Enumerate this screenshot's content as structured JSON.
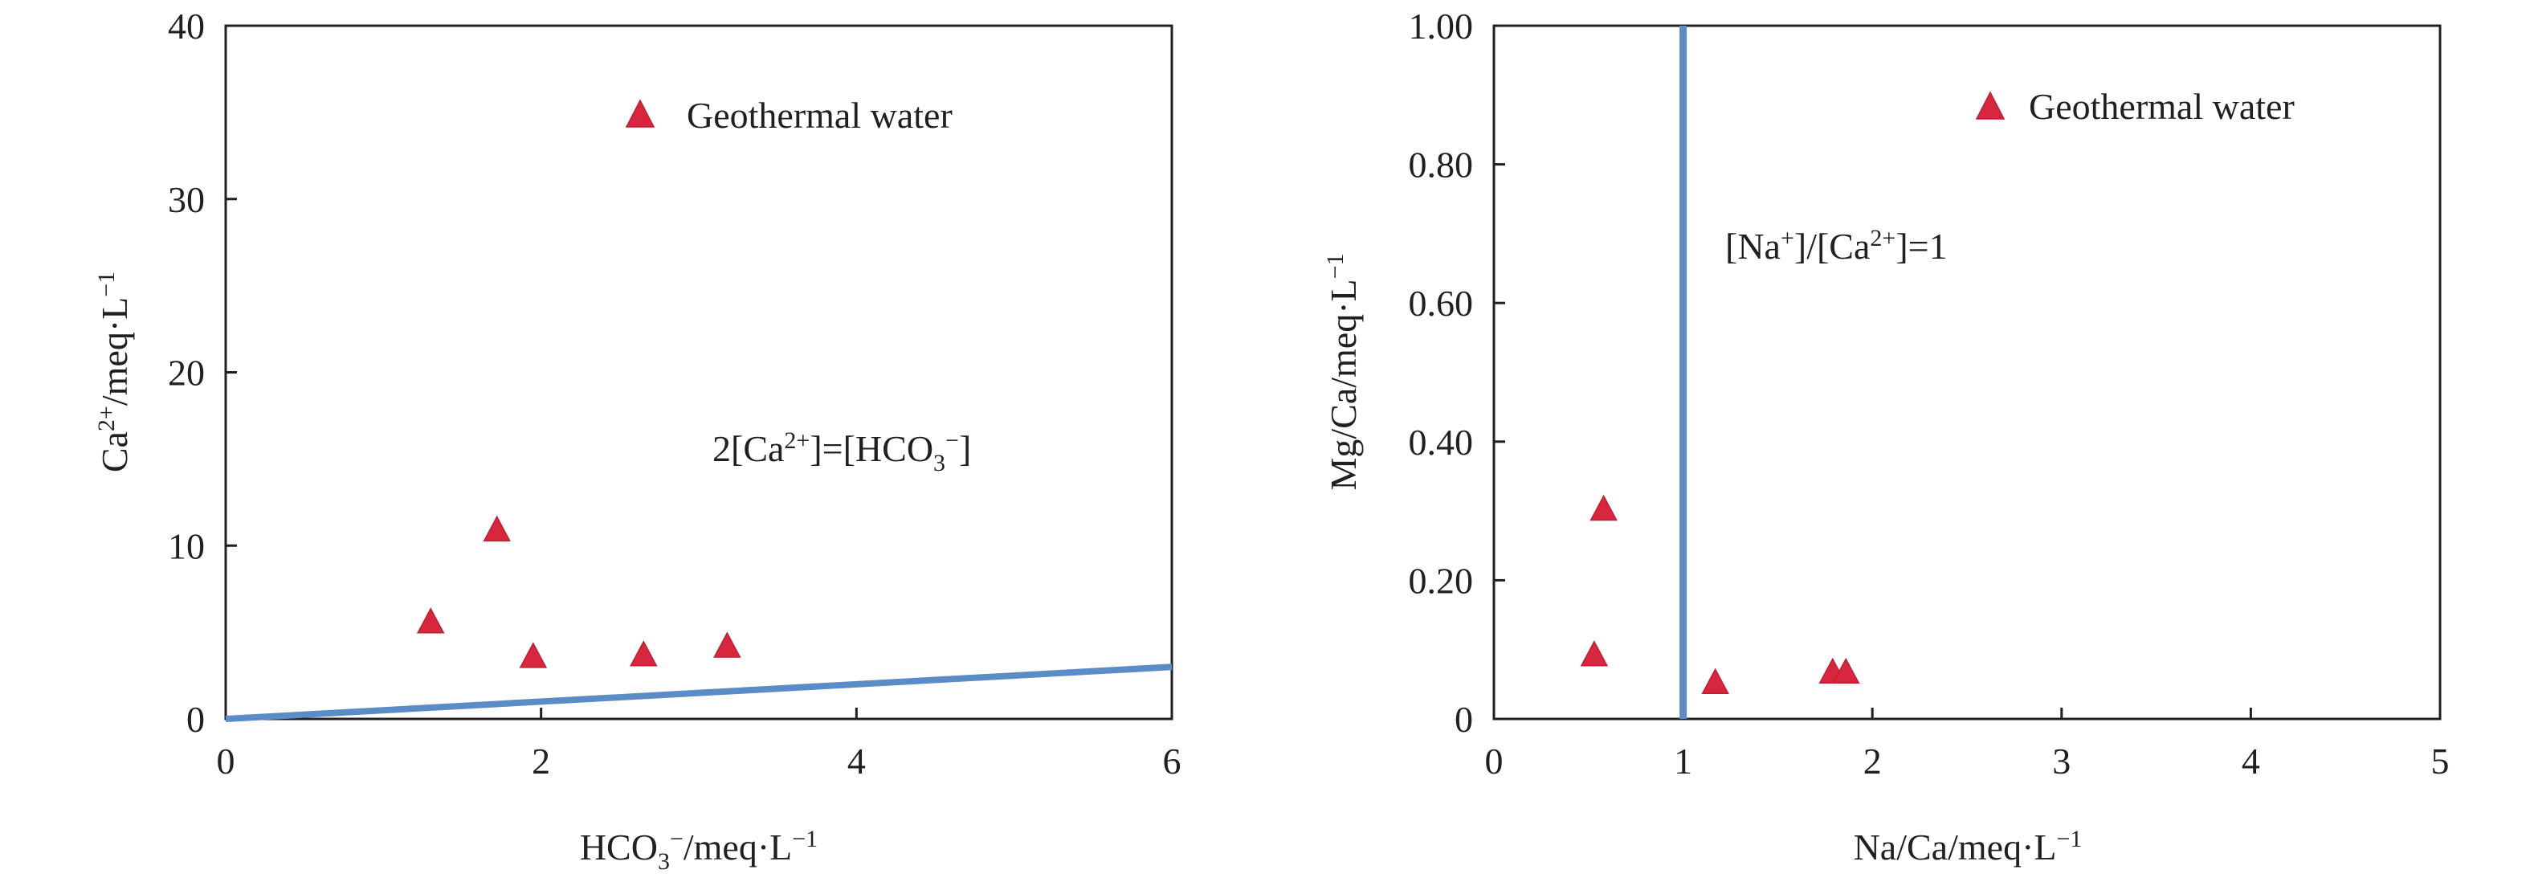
{
  "chart_data": [
    {
      "type": "scatter",
      "series": [
        {
          "name": "Geothermal water",
          "marker": "triangle",
          "color": "#d7263d",
          "points": [
            {
              "x": 1.3,
              "y": 5.5
            },
            {
              "x": 1.72,
              "y": 10.8
            },
            {
              "x": 1.95,
              "y": 3.5
            },
            {
              "x": 2.65,
              "y": 3.6
            },
            {
              "x": 3.18,
              "y": 4.1
            }
          ]
        }
      ],
      "reference_line": {
        "label": {
          "base": "2[Ca",
          "sup1": "2+",
          "mid": "]=[HCO",
          "sub": "3",
          "sup2": "−",
          "end": "]"
        },
        "color": "#5b8cc8",
        "x": [
          0,
          6
        ],
        "y": [
          0,
          3
        ]
      },
      "xlabel": {
        "base": "HCO",
        "sub": "3",
        "sup": "−",
        "rest": "/meq·L",
        "unit_sup": "−1"
      },
      "ylabel": {
        "base": "Ca",
        "sup": "2+",
        "rest": "/meq·L",
        "unit_sup": "−1"
      },
      "xlim": [
        0,
        6
      ],
      "ylim": [
        0,
        40
      ],
      "xticks": [
        0,
        2,
        4,
        6
      ],
      "yticks": [
        0,
        10,
        20,
        30,
        40
      ],
      "xtick_labels": [
        "0",
        "2",
        "4",
        "6"
      ],
      "ytick_labels": [
        "0",
        "10",
        "20",
        "30",
        "40"
      ],
      "grid": false,
      "legend_position": "top-right"
    },
    {
      "type": "scatter",
      "series": [
        {
          "name": "Geothermal water",
          "marker": "triangle",
          "color": "#d7263d",
          "points": [
            {
              "x": 0.53,
              "y": 0.09
            },
            {
              "x": 0.58,
              "y": 0.3
            },
            {
              "x": 1.17,
              "y": 0.05
            },
            {
              "x": 1.79,
              "y": 0.065
            },
            {
              "x": 1.86,
              "y": 0.065
            }
          ]
        }
      ],
      "reference_line": {
        "label": {
          "b1": "[Na",
          "s1": "+",
          "b2": "]/[Ca",
          "s2": "2+",
          "b3": "]=1"
        },
        "color": "#5b8cc8",
        "x_value": 1
      },
      "xlabel": {
        "base": "Na/Ca/meq·L",
        "unit_sup": "−1"
      },
      "ylabel": {
        "base": "Mg/Ca/meq·L",
        "unit_sup": "−1"
      },
      "xlim": [
        0,
        5
      ],
      "ylim": [
        0,
        1
      ],
      "xticks": [
        0,
        1,
        2,
        3,
        4,
        5
      ],
      "yticks": [
        0,
        0.2,
        0.4,
        0.6,
        0.8,
        1.0
      ],
      "xtick_labels": [
        "0",
        "1",
        "2",
        "3",
        "4",
        "5"
      ],
      "ytick_labels": [
        "0",
        "0.20",
        "0.40",
        "0.60",
        "0.80",
        "1.00"
      ],
      "grid": false,
      "legend_position": "top-right"
    }
  ]
}
